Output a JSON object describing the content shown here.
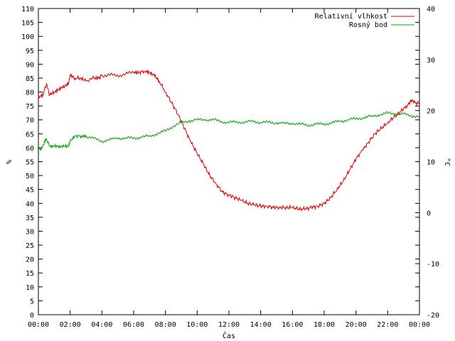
{
  "chart_data": {
    "type": "line",
    "xlabel": "Čas",
    "ylabel_left": "%",
    "ylabel_right": "°C",
    "x_ticks": [
      "00:00",
      "02:00",
      "04:00",
      "06:00",
      "08:00",
      "10:00",
      "12:00",
      "14:00",
      "16:00",
      "18:00",
      "20:00",
      "22:00",
      "00:00"
    ],
    "x_range_hours": [
      0,
      24
    ],
    "ylim_left": [
      0,
      110
    ],
    "y_ticks_left": [
      0,
      5,
      10,
      15,
      20,
      25,
      30,
      35,
      40,
      45,
      50,
      55,
      60,
      65,
      70,
      75,
      80,
      85,
      90,
      95,
      100,
      105,
      110
    ],
    "ylim_right": [
      -20,
      40
    ],
    "y_ticks_right": [
      -20,
      -10,
      0,
      10,
      20,
      30,
      40
    ],
    "grid": false,
    "legend_position": "top-right",
    "series": [
      {
        "name": "Relativní vlhkost",
        "color": "#e00000",
        "axis": "left",
        "x": [
          0,
          0.3,
          0.5,
          0.7,
          1,
          1.3,
          1.6,
          1.9,
          2,
          2.3,
          2.7,
          3,
          3.5,
          3.8,
          4,
          4.5,
          5,
          5.5,
          6,
          6.3,
          6.7,
          7,
          7.3,
          7.6,
          8,
          8.4,
          8.8,
          9.2,
          9.6,
          10,
          10.4,
          10.8,
          11.2,
          11.6,
          12,
          12.4,
          12.8,
          13.2,
          13.6,
          14,
          14.4,
          14.8,
          15.2,
          15.6,
          16,
          16.4,
          16.8,
          17.2,
          17.6,
          18,
          18.4,
          18.8,
          19.2,
          19.6,
          20,
          20.4,
          20.8,
          21.2,
          21.6,
          22,
          22.4,
          22.8,
          23.2,
          23.5,
          23.8,
          24
        ],
        "y": [
          78,
          79,
          83,
          79,
          80,
          81,
          82,
          83,
          86,
          85,
          85,
          84,
          85,
          85,
          86,
          86,
          86,
          86.5,
          87,
          87,
          87.5,
          87,
          86,
          84,
          80,
          76,
          72,
          67,
          62,
          58,
          54,
          50,
          47,
          44,
          43,
          42,
          41,
          40,
          39.5,
          39,
          39,
          38.5,
          38.5,
          38.5,
          38.5,
          38,
          38,
          38.5,
          39,
          40,
          42,
          45,
          48,
          52,
          56,
          59,
          62,
          65,
          67,
          69,
          71,
          73,
          75,
          77,
          76,
          76
        ]
      },
      {
        "name": "Rosný bod",
        "color": "#00a000",
        "axis": "right",
        "x": [
          0,
          0.2,
          0.4,
          0.5,
          0.7,
          1,
          1.3,
          1.6,
          1.9,
          2,
          2.3,
          2.7,
          3,
          3.5,
          4,
          4.5,
          5,
          5.5,
          6,
          6.5,
          7,
          7.5,
          8,
          8.5,
          9,
          9.5,
          10,
          10.5,
          11,
          11.5,
          12,
          12.5,
          13,
          13.5,
          14,
          14.5,
          15,
          15.5,
          16,
          16.5,
          17,
          17.5,
          18,
          18.5,
          19,
          19.5,
          20,
          20.5,
          21,
          21.5,
          22,
          22.5,
          23,
          23.5,
          24
        ],
        "y": [
          12.5,
          12.5,
          14,
          14.5,
          13,
          13,
          13,
          13,
          13,
          14,
          15,
          15,
          15,
          14.5,
          14,
          14.3,
          14.6,
          14.6,
          14.6,
          14.8,
          15,
          15.5,
          16,
          17,
          17.6,
          18,
          18.2,
          18.2,
          18.2,
          17.9,
          17.6,
          17.8,
          17.7,
          17.9,
          17.7,
          17.7,
          17.6,
          17.5,
          17.5,
          17.3,
          17.2,
          17.3,
          17.4,
          17.6,
          17.9,
          18.2,
          18.4,
          18.6,
          18.9,
          19.2,
          19.5,
          19.4,
          19.3,
          19,
          18.8
        ]
      }
    ]
  }
}
